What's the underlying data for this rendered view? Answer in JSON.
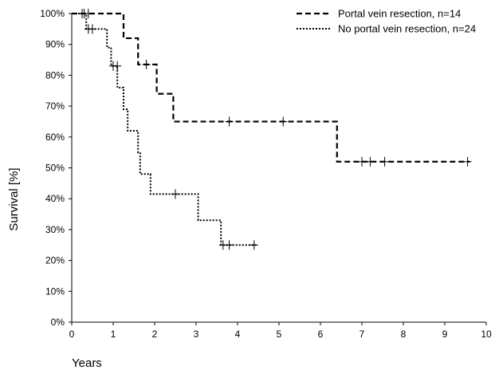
{
  "chart_data": {
    "type": "line",
    "xlabel": "Years",
    "ylabel": "Survival [%]",
    "xlim": [
      0,
      10
    ],
    "ylim": [
      0,
      100
    ],
    "x_ticks": [
      "0",
      "1",
      "2",
      "3",
      "4",
      "5",
      "6",
      "7",
      "8",
      "9",
      "10"
    ],
    "y_ticks": [
      "0%",
      "10%",
      "20%",
      "30%",
      "40%",
      "50%",
      "60%",
      "70%",
      "80%",
      "90%",
      "100%"
    ],
    "grid": false,
    "legend_position": "top-right",
    "series": [
      {
        "name": "Portal vein resection, n=14",
        "style": "dashed",
        "steps": [
          [
            0,
            100
          ],
          [
            1.25,
            92
          ],
          [
            1.6,
            83.5
          ],
          [
            2.05,
            74
          ],
          [
            2.45,
            65
          ],
          [
            6.4,
            52
          ],
          [
            9.6,
            52
          ]
        ],
        "censored": [
          [
            0.3,
            100
          ],
          [
            0.4,
            100
          ],
          [
            1.8,
            83.5
          ],
          [
            3.8,
            65
          ],
          [
            5.1,
            65
          ],
          [
            7.0,
            52
          ],
          [
            7.2,
            52
          ],
          [
            7.55,
            52
          ],
          [
            9.55,
            52
          ]
        ]
      },
      {
        "name": "No portal vein resection, n=24",
        "style": "dotted",
        "steps": [
          [
            0,
            100
          ],
          [
            0.35,
            95
          ],
          [
            0.85,
            89
          ],
          [
            0.95,
            83
          ],
          [
            1.1,
            76
          ],
          [
            1.25,
            69
          ],
          [
            1.35,
            62
          ],
          [
            1.6,
            55
          ],
          [
            1.65,
            48
          ],
          [
            1.9,
            41.5
          ],
          [
            3.05,
            33
          ],
          [
            3.6,
            25
          ],
          [
            4.45,
            25
          ]
        ],
        "censored": [
          [
            0.25,
            100
          ],
          [
            0.4,
            95
          ],
          [
            0.5,
            95
          ],
          [
            1.0,
            83
          ],
          [
            1.1,
            83
          ],
          [
            2.5,
            41.5
          ],
          [
            3.65,
            25
          ],
          [
            3.8,
            25
          ],
          [
            4.4,
            25
          ]
        ]
      }
    ]
  }
}
